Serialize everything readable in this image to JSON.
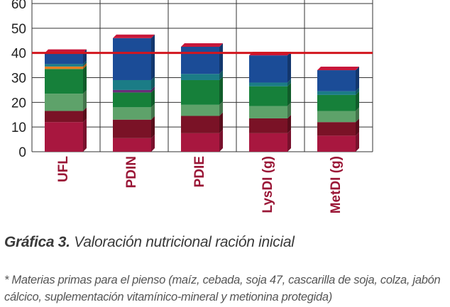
{
  "chart_data": {
    "type": "bar",
    "stacked": true,
    "categories": [
      "UFL",
      "PDIN",
      "PDIE",
      "LysDI (g)",
      "MetDI (g)"
    ],
    "ylim": [
      0,
      60
    ],
    "yticks": [
      0,
      10,
      20,
      30,
      40,
      50,
      60
    ],
    "grid": true,
    "reference_line": {
      "value": 40,
      "color": "#d2161e"
    },
    "segment_colors": [
      "#a8173f",
      "#7a1226",
      "#5ea26a",
      "#16803a",
      "#e67e22",
      "#6a2d7a",
      "#1b7c86",
      "#1b4c97"
    ],
    "series": [
      {
        "color": "#a8173f",
        "values": [
          12,
          5.5,
          7.5,
          7.5,
          6.5
        ]
      },
      {
        "color": "#7a1226",
        "values": [
          4.5,
          7.5,
          7,
          6,
          5.5
        ]
      },
      {
        "color": "#5ea26a",
        "values": [
          7,
          5,
          4.5,
          5,
          4.5
        ]
      },
      {
        "color": "#16803a",
        "values": [
          10,
          6,
          10,
          8,
          6.5
        ]
      },
      {
        "color": "#e67e22",
        "values": [
          1,
          0,
          0,
          0,
          0
        ]
      },
      {
        "color": "#6a2d7a",
        "values": [
          0,
          1,
          0,
          0,
          0
        ]
      },
      {
        "color": "#1b7c86",
        "values": [
          1,
          4,
          2.5,
          1.5,
          1.5
        ]
      },
      {
        "color": "#1b4c97",
        "values": [
          4.5,
          17,
          11,
          11,
          8.5
        ]
      }
    ],
    "caption_bold": "Gráfica 3.",
    "caption_text": " Valoración nutricional ración inicial",
    "footnote": "* Materias primas para el pienso (maíz, cebada, soja 47, cascarilla de soja, colza, jabón cálcico, suplementación vitamínico-mineral y metionina protegida)"
  }
}
